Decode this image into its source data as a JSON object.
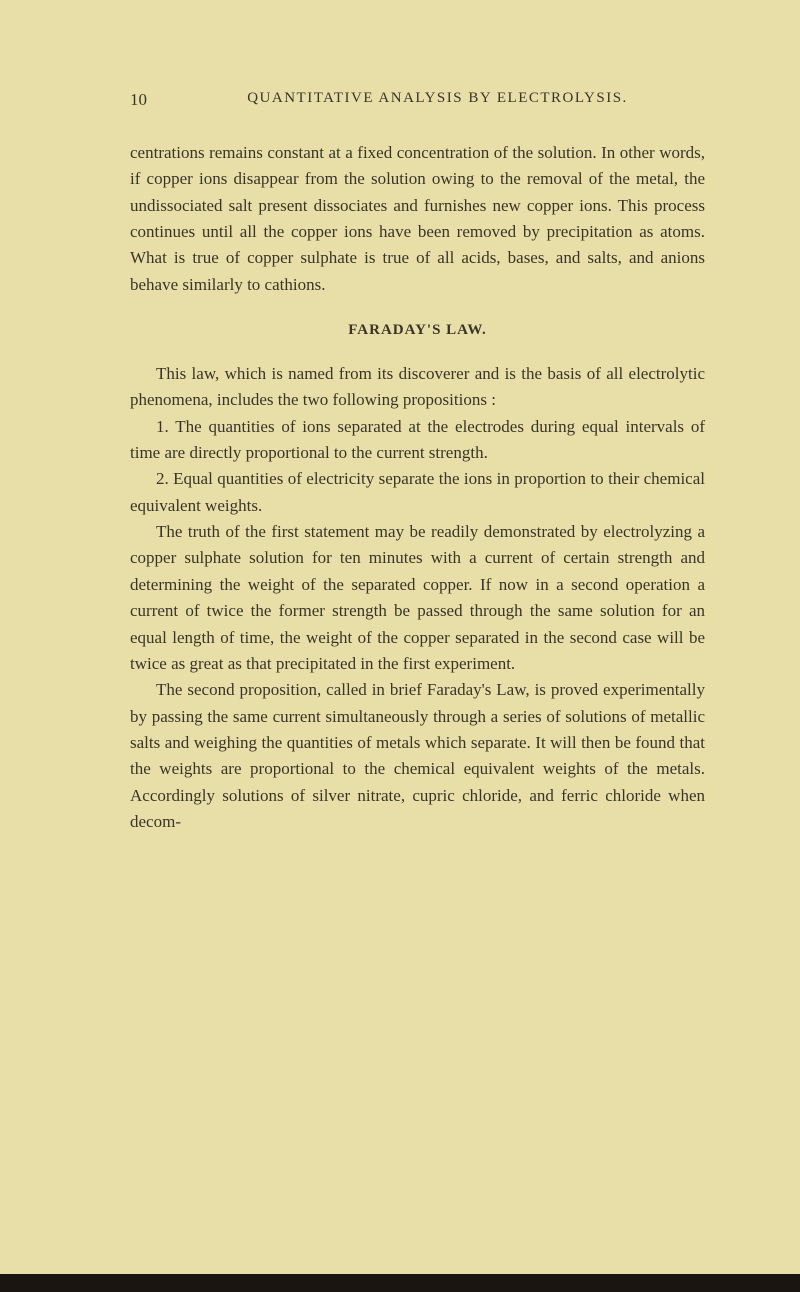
{
  "page": {
    "number": "10",
    "running_header": "QUANTITATIVE ANALYSIS BY ELECTROLYSIS.",
    "background_color": "#e8dfa8",
    "text_color": "#3a3428"
  },
  "paragraphs": {
    "p1": "centrations remains constant at a fixed concentration of the solution. In other words, if copper ions disappear from the solution owing to the removal of the metal, the undissociated salt present dissociates and furnishes new copper ions. This process continues until all the copper ions have been removed by precipitation as atoms. What is true of copper sulphate is true of all acids, bases, and salts, and anions behave similarly to cathions."
  },
  "section": {
    "heading": "FARADAY'S LAW."
  },
  "body": {
    "p2": "This law, which is named from its discoverer and is the basis of all electrolytic phenomena, includes the two following propositions :",
    "item1": "1. The quantities of ions separated at the electrodes during equal intervals of time are directly proportional to the current strength.",
    "item2": "2. Equal quantities of electricity separate the ions in proportion to their chemical equivalent weights.",
    "p3": "The truth of the first statement may be readily demonstrated by electrolyzing a copper sulphate solution for ten minutes with a current of certain strength and determining the weight of the separated copper. If now in a second operation a current of twice the former strength be passed through the same solution for an equal length of time, the weight of the copper separated in the second case will be twice as great as that precipitated in the first experiment.",
    "p4": "The second proposition, called in brief Faraday's Law, is proved experimentally by passing the same current simultaneously through a series of solutions of metallic salts and weighing the quantities of metals which separate. It will then be found that the weights are proportional to the chemical equivalent weights of the metals. Accordingly solutions of silver nitrate, cupric chloride, and ferric chloride when decom-"
  },
  "typography": {
    "body_fontsize": 17,
    "header_fontsize": 15,
    "line_height": 1.55,
    "font_family": "Times New Roman"
  }
}
